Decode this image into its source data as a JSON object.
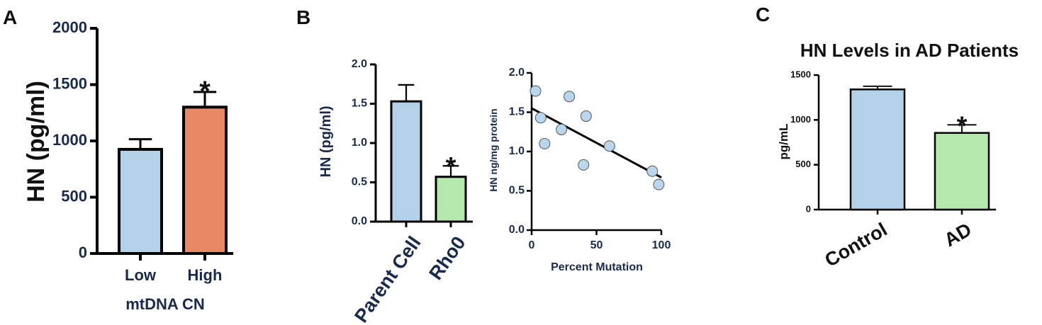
{
  "panels": {
    "a": {
      "label": "A"
    },
    "b": {
      "label": "B"
    },
    "c": {
      "label": "C"
    }
  },
  "colors": {
    "blue": "#b4d1ea",
    "orange": "#e98865",
    "green": "#b5e8ad",
    "scatter": "#bad6ec",
    "ink": "#000000"
  },
  "chart_data": [
    {
      "id": "a",
      "type": "bar",
      "title": "",
      "ylabel": "HN (pg/ml)",
      "xlabel": "mtDNA CN",
      "categories": [
        "Low",
        "High"
      ],
      "values": [
        925,
        1300
      ],
      "errors": [
        90,
        135
      ],
      "significance": [
        "",
        "*"
      ],
      "ylim": [
        0,
        2000
      ],
      "yticks": [
        "0",
        "500",
        "1000",
        "1500",
        "2000"
      ],
      "bar_colors": [
        "#b4d1ea",
        "#e98865"
      ]
    },
    {
      "id": "b1",
      "type": "bar",
      "title": "",
      "ylabel": "HN (pg/ml)",
      "xlabel": "",
      "categories": [
        "Parent Cell",
        "Rho0"
      ],
      "values": [
        1.53,
        0.57
      ],
      "errors": [
        0.21,
        0.14
      ],
      "significance": [
        "",
        "*"
      ],
      "ylim": [
        0,
        2.0
      ],
      "yticks": [
        "0.0",
        "0.5",
        "1.0",
        "1.5",
        "2.0"
      ],
      "bar_colors": [
        "#b4d1ea",
        "#b5e8ad"
      ]
    },
    {
      "id": "b2",
      "type": "scatter",
      "title": "",
      "ylabel": "HN ng/mg protein",
      "xlabel": "Percent Mutation",
      "x": [
        3,
        7,
        10,
        23,
        29,
        40,
        42,
        60,
        93,
        98
      ],
      "y": [
        1.77,
        1.43,
        1.1,
        1.28,
        1.7,
        0.83,
        1.45,
        1.07,
        0.75,
        0.58
      ],
      "fit_line": {
        "x": [
          0,
          100
        ],
        "y": [
          1.55,
          0.67
        ]
      },
      "xlim": [
        0,
        100
      ],
      "ylim": [
        0,
        2.0
      ],
      "xticks": [
        "0",
        "50",
        "100"
      ],
      "yticks": [
        "0.0",
        "0.5",
        "1.0",
        "1.5",
        "2.0"
      ]
    },
    {
      "id": "c",
      "type": "bar",
      "title": "HN Levels in AD Patients",
      "ylabel": "pg/mL",
      "xlabel": "",
      "categories": [
        "Control",
        "AD"
      ],
      "values": [
        1340,
        855
      ],
      "errors": [
        35,
        90
      ],
      "significance": [
        "",
        "*"
      ],
      "ylim": [
        0,
        1500
      ],
      "yticks": [
        "0",
        "500",
        "1000",
        "1500"
      ],
      "bar_colors": [
        "#b4d1ea",
        "#b5e8ad"
      ]
    }
  ]
}
